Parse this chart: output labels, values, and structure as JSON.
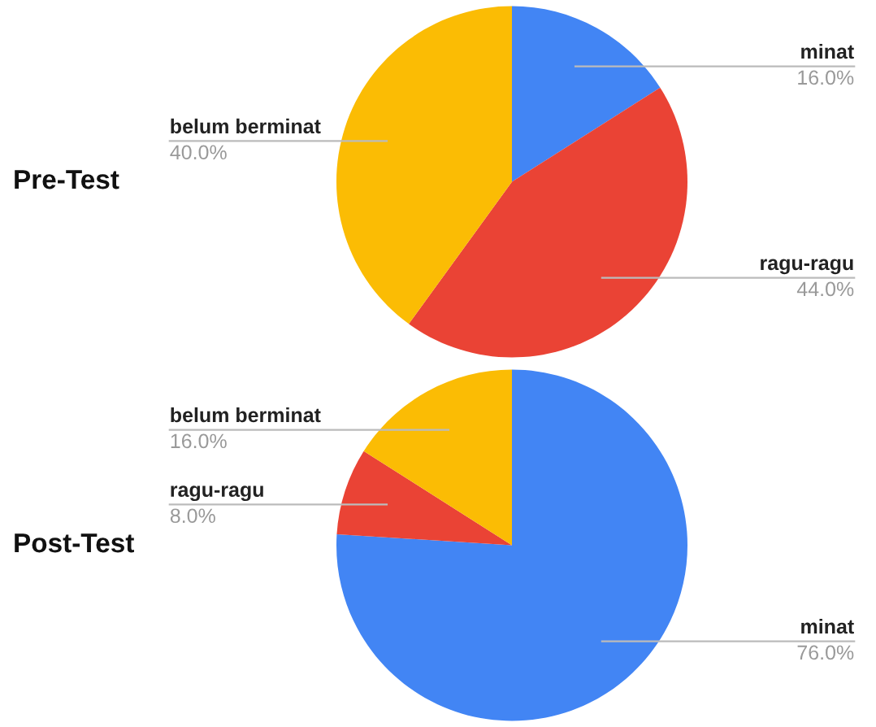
{
  "chart_data": [
    {
      "type": "pie",
      "title": "Pre-Test",
      "categories": [
        "minat",
        "ragu-ragu",
        "belum berminat"
      ],
      "values": [
        16,
        44,
        40
      ],
      "value_labels": [
        "16.0%",
        "44.0%",
        "40.0%"
      ],
      "colors": [
        "#4285f4",
        "#ea4335",
        "#fbbc04"
      ]
    },
    {
      "type": "pie",
      "title": "Post-Test",
      "categories": [
        "minat",
        "ragu-ragu",
        "belum berminat"
      ],
      "values": [
        76,
        8,
        16
      ],
      "value_labels": [
        "76.0%",
        "8.0%",
        "16.0%"
      ],
      "colors": [
        "#4285f4",
        "#ea4335",
        "#fbbc04"
      ]
    }
  ]
}
